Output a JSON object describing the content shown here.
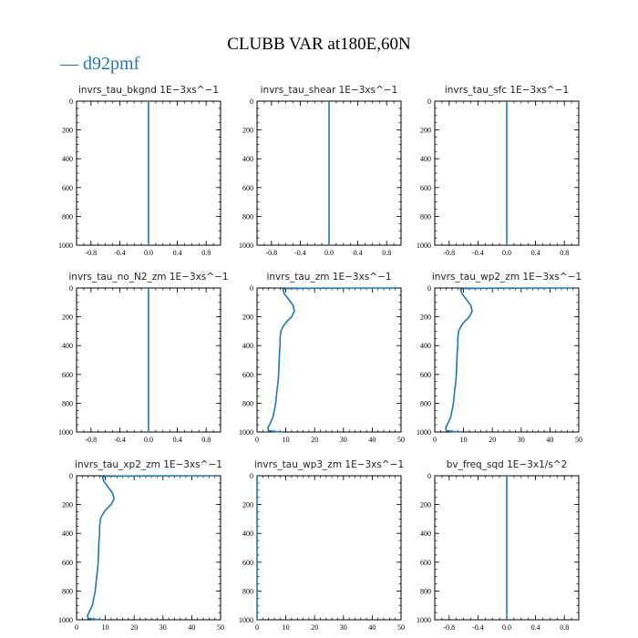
{
  "figure": {
    "title": "CLUBB VAR at180E,60N",
    "legend": "— d92pmf",
    "series_color": "#1f77b4"
  },
  "chart_data": [
    {
      "type": "line",
      "title": "invrs_tau_bkgnd",
      "units": "1E−3xs^−1",
      "xlim": [
        -1,
        1
      ],
      "ylim": [
        1000,
        0
      ],
      "xticks": [
        "-0.8",
        "-0.4",
        "0.0",
        "0.4",
        "0.8"
      ],
      "xtick_values": [
        -0.8,
        -0.4,
        0,
        0.4,
        0.8
      ],
      "yticks": [
        "0",
        "200",
        "400",
        "600",
        "800",
        "1000"
      ],
      "ytick_values": [
        0,
        200,
        400,
        600,
        800,
        1000
      ],
      "series": [
        {
          "name": "d92pmf",
          "x": [
            0,
            0
          ],
          "y": [
            0,
            1000
          ]
        }
      ]
    },
    {
      "type": "line",
      "title": "invrs_tau_shear",
      "units": "1E−3xs^−1",
      "xlim": [
        -1,
        1
      ],
      "ylim": [
        1000,
        0
      ],
      "xticks": [
        "-0.8",
        "-0.4",
        "0.0",
        "0.4",
        "0.8"
      ],
      "xtick_values": [
        -0.8,
        -0.4,
        0,
        0.4,
        0.8
      ],
      "yticks": [
        "0",
        "200",
        "400",
        "600",
        "800",
        "1000"
      ],
      "ytick_values": [
        0,
        200,
        400,
        600,
        800,
        1000
      ],
      "series": [
        {
          "name": "d92pmf",
          "x": [
            0,
            0
          ],
          "y": [
            0,
            1000
          ]
        }
      ]
    },
    {
      "type": "line",
      "title": "invrs_tau_sfc",
      "units": "1E−3xs^−1",
      "xlim": [
        -1,
        1
      ],
      "ylim": [
        1000,
        0
      ],
      "xticks": [
        "-0.8",
        "-0.4",
        "0.0",
        "0.4",
        "0.8"
      ],
      "xtick_values": [
        -0.8,
        -0.4,
        0,
        0.4,
        0.8
      ],
      "yticks": [
        "0",
        "200",
        "400",
        "600",
        "800",
        "1000"
      ],
      "ytick_values": [
        0,
        200,
        400,
        600,
        800,
        1000
      ],
      "series": [
        {
          "name": "d92pmf",
          "x": [
            0,
            0
          ],
          "y": [
            0,
            1000
          ]
        }
      ]
    },
    {
      "type": "line",
      "title": "invrs_tau_no_N2_zm",
      "units": "1E−3xs^−1",
      "xlim": [
        -1,
        1
      ],
      "ylim": [
        1000,
        0
      ],
      "xticks": [
        "-0.8",
        "-0.4",
        "0.0",
        "0.4",
        "0.8"
      ],
      "xtick_values": [
        -0.8,
        -0.4,
        0,
        0.4,
        0.8
      ],
      "yticks": [
        "0",
        "200",
        "400",
        "600",
        "800",
        "1000"
      ],
      "ytick_values": [
        0,
        200,
        400,
        600,
        800,
        1000
      ],
      "series": [
        {
          "name": "d92pmf",
          "x": [
            0,
            0
          ],
          "y": [
            0,
            1000
          ]
        }
      ]
    },
    {
      "type": "line",
      "title": "invrs_tau_zm",
      "units": "1E−3xs^−1",
      "xlim": [
        0,
        50
      ],
      "ylim": [
        1000,
        0
      ],
      "xticks": [
        "0",
        "10",
        "20",
        "30",
        "40",
        "50"
      ],
      "xtick_values": [
        0,
        10,
        20,
        30,
        40,
        50
      ],
      "yticks": [
        "0",
        "200",
        "400",
        "600",
        "800",
        "1000"
      ],
      "ytick_values": [
        0,
        200,
        400,
        600,
        800,
        1000
      ],
      "series": [
        {
          "name": "d92pmf",
          "x": [
            48,
            20,
            10,
            9,
            9.5,
            11,
            12.5,
            13,
            12,
            10,
            9,
            8.3,
            8,
            8,
            7.8,
            7.7,
            7.6,
            7.5,
            7.3,
            7,
            6.5,
            5.5,
            4.3,
            3.8,
            4,
            6,
            9
          ],
          "y": [
            0,
            1,
            4,
            10,
            40,
            80,
            120,
            160,
            200,
            240,
            270,
            300,
            350,
            400,
            450,
            500,
            550,
            600,
            650,
            700,
            800,
            900,
            950,
            970,
            990,
            996,
            1000
          ]
        }
      ]
    },
    {
      "type": "line",
      "title": "invrs_tau_wp2_zm",
      "units": "1E−3xs^−1",
      "xlim": [
        0,
        50
      ],
      "ylim": [
        1000,
        0
      ],
      "xticks": [
        "0",
        "10",
        "20",
        "30",
        "40",
        "50"
      ],
      "xtick_values": [
        0,
        10,
        20,
        30,
        40,
        50
      ],
      "yticks": [
        "0",
        "200",
        "400",
        "600",
        "800",
        "1000"
      ],
      "ytick_values": [
        0,
        200,
        400,
        600,
        800,
        1000
      ],
      "series": [
        {
          "name": "d92pmf",
          "x": [
            48,
            20,
            10,
            9,
            9.5,
            11,
            12.5,
            13,
            12,
            10,
            9,
            8.3,
            8,
            8,
            7.8,
            7.7,
            7.6,
            7.5,
            7.3,
            7,
            6.5,
            5.5,
            4.3,
            3.8,
            4,
            6,
            9
          ],
          "y": [
            0,
            1,
            4,
            10,
            40,
            80,
            120,
            160,
            200,
            240,
            270,
            300,
            350,
            400,
            450,
            500,
            550,
            600,
            650,
            700,
            800,
            900,
            950,
            970,
            990,
            996,
            1000
          ]
        }
      ]
    },
    {
      "type": "line",
      "title": "invrs_tau_xp2_zm",
      "units": "1E−3xs^−1",
      "xlim": [
        0,
        50
      ],
      "ylim": [
        1000,
        0
      ],
      "xticks": [
        "0",
        "10",
        "20",
        "30",
        "40",
        "50"
      ],
      "xtick_values": [
        0,
        10,
        20,
        30,
        40,
        50
      ],
      "yticks": [
        "0",
        "200",
        "400",
        "600",
        "800",
        "1000"
      ],
      "ytick_values": [
        0,
        200,
        400,
        600,
        800,
        1000
      ],
      "series": [
        {
          "name": "d92pmf",
          "x": [
            48,
            20,
            10,
            9,
            9.5,
            11,
            12.5,
            13,
            12,
            10,
            9,
            8.3,
            8,
            8,
            7.8,
            7.7,
            7.6,
            7.5,
            7.3,
            7,
            6.5,
            5.5,
            4.3,
            3.8,
            4,
            6,
            9
          ],
          "y": [
            0,
            1,
            4,
            10,
            40,
            80,
            120,
            160,
            200,
            240,
            270,
            300,
            350,
            400,
            450,
            500,
            550,
            600,
            650,
            700,
            800,
            900,
            950,
            970,
            990,
            996,
            1000
          ]
        }
      ]
    },
    {
      "type": "line",
      "title": "invrs_tau_wp3_zm",
      "units": "1E−3xs^−1",
      "xlim": [
        0,
        50
      ],
      "ylim": [
        1000,
        0
      ],
      "xticks": [
        "0",
        "10",
        "20",
        "30",
        "40",
        "50"
      ],
      "xtick_values": [
        0,
        10,
        20,
        30,
        40,
        50
      ],
      "yticks": [
        "0",
        "200",
        "400",
        "600",
        "800",
        "1000"
      ],
      "ytick_values": [
        0,
        200,
        400,
        600,
        800,
        1000
      ],
      "series": [
        {
          "name": "d92pmf",
          "x": [
            0,
            0
          ],
          "y": [
            0,
            1000
          ]
        }
      ]
    },
    {
      "type": "line",
      "title": "bv_freq_sqd",
      "units": "1E−3x1/s^2",
      "xlim": [
        -1,
        1
      ],
      "ylim": [
        1000,
        0
      ],
      "xticks": [
        "-0.8",
        "-0.4",
        "0.0",
        "0.4",
        "0.8"
      ],
      "xtick_values": [
        -0.8,
        -0.4,
        0,
        0.4,
        0.8
      ],
      "yticks": [
        "0",
        "200",
        "400",
        "600",
        "800",
        "1000"
      ],
      "ytick_values": [
        0,
        200,
        400,
        600,
        800,
        1000
      ],
      "series": [
        {
          "name": "d92pmf",
          "x": [
            0,
            0
          ],
          "y": [
            0,
            1000
          ]
        }
      ]
    }
  ]
}
